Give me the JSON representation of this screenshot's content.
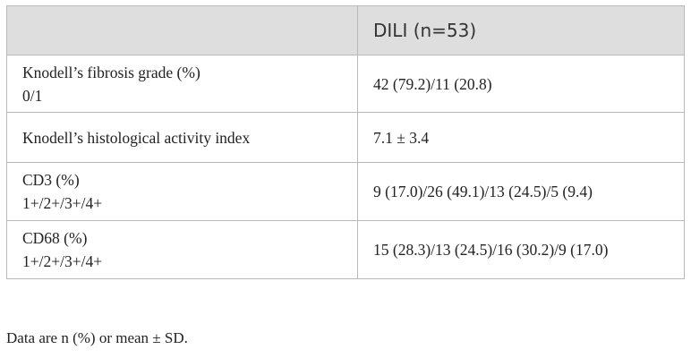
{
  "table": {
    "header": {
      "left": "",
      "right": "DILI (n=53)"
    },
    "rows": [
      {
        "label_lines": [
          "Knodell’s fibrosis grade (%)",
          "0/1"
        ],
        "value": "42 (79.2)/11 (20.8)"
      },
      {
        "label_lines": [
          "Knodell’s histological activity index"
        ],
        "value": "7.1 ± 3.4"
      },
      {
        "label_lines": [
          "CD3 (%)",
          "1+/2+/3+/4+"
        ],
        "value": "9 (17.0)/26 (49.1)/13 (24.5)/5 (9.4)"
      },
      {
        "label_lines": [
          "CD68 (%)",
          "1+/2+/3+/4+"
        ],
        "value": "15 (28.3)/13 (24.5)/16 (30.2)/9 (17.0)"
      }
    ]
  },
  "footnote": "Data are n (%) or mean ± SD."
}
